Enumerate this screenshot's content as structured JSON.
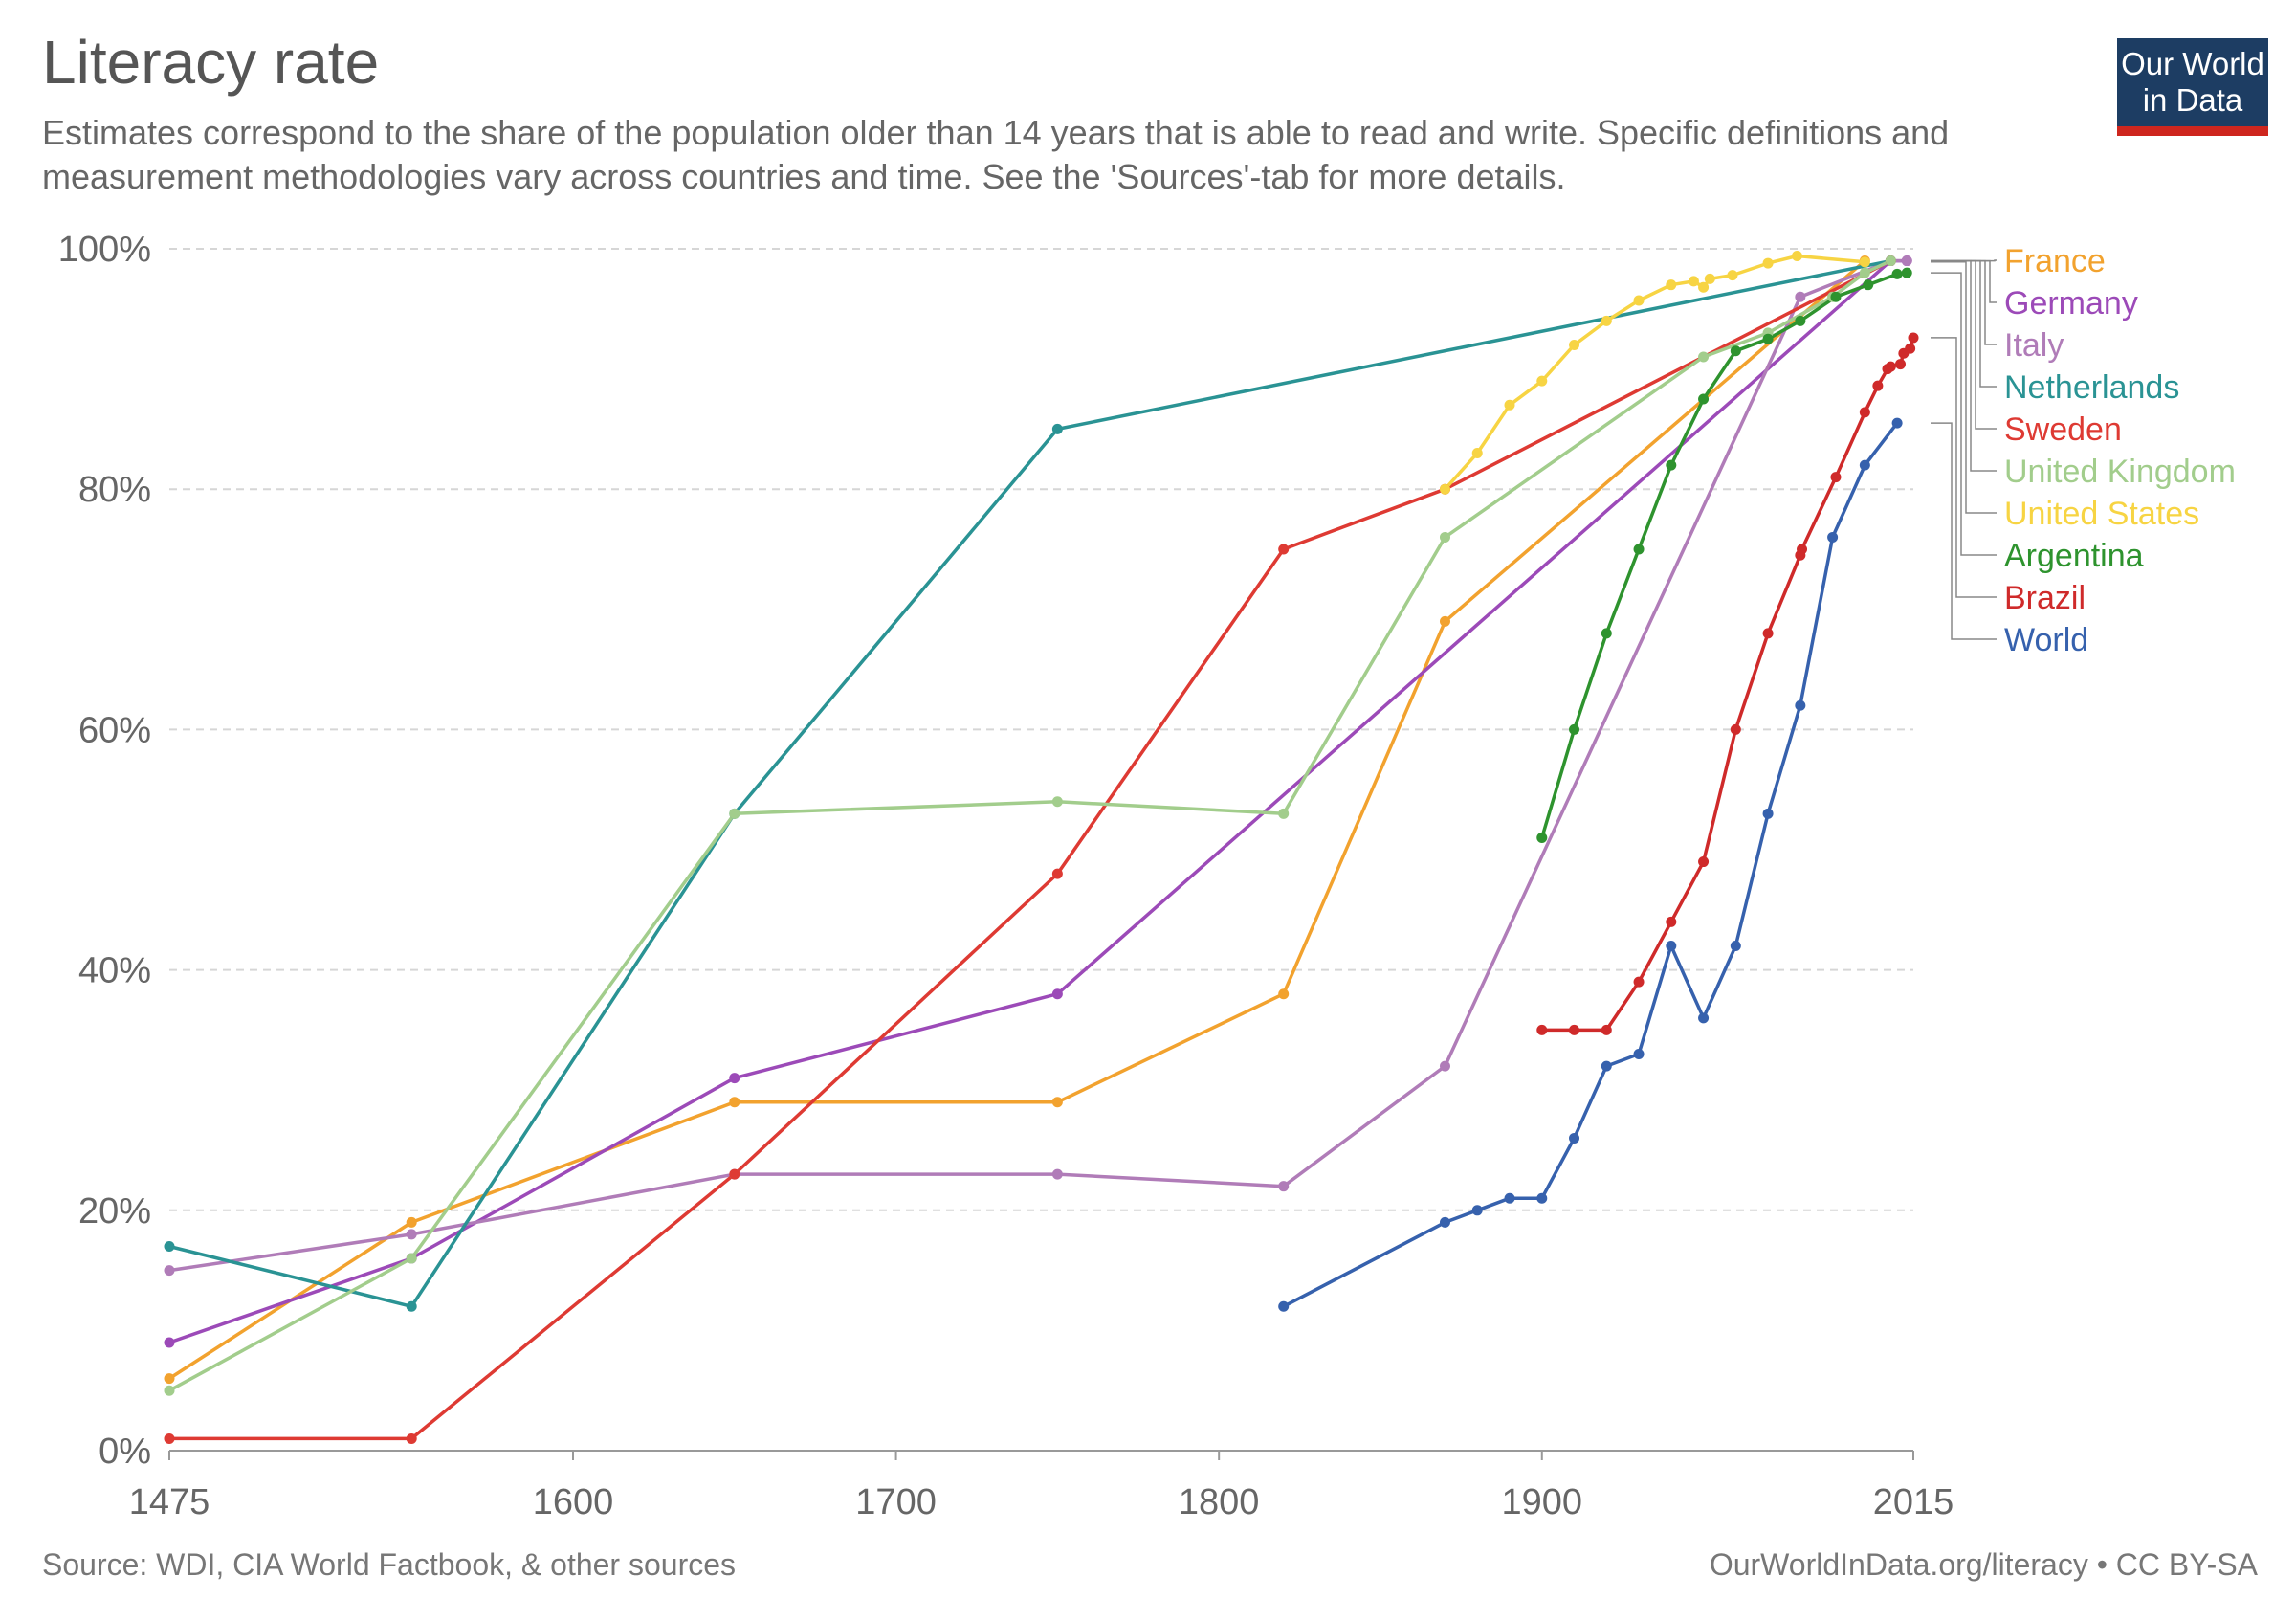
{
  "header": {
    "title": "Literacy rate",
    "subtitle": "Estimates correspond to the share of the population older than 14 years that is able to read and write. Specific definitions and measurement methodologies vary across countries and time. See the 'Sources'-tab for more details.",
    "logo_line1": "Our World",
    "logo_line2": "in Data"
  },
  "footer": {
    "source": "Source: WDI, CIA World Factbook, & other sources",
    "credit": "OurWorldInData.org/literacy • CC BY-SA"
  },
  "chart_data": {
    "type": "line",
    "title": "Literacy rate",
    "xlabel": "",
    "ylabel": "",
    "xlim": [
      1475,
      2015
    ],
    "ylim": [
      0,
      100
    ],
    "x_ticks": [
      {
        "value": 1475,
        "label": "1475"
      },
      {
        "value": 1600,
        "label": "1600"
      },
      {
        "value": 1700,
        "label": "1700"
      },
      {
        "value": 1800,
        "label": "1800"
      },
      {
        "value": 1900,
        "label": "1900"
      },
      {
        "value": 2015,
        "label": "2015"
      }
    ],
    "y_ticks": [
      {
        "value": 0,
        "label": "0%"
      },
      {
        "value": 20,
        "label": "20%"
      },
      {
        "value": 40,
        "label": "40%"
      },
      {
        "value": 60,
        "label": "60%"
      },
      {
        "value": 80,
        "label": "80%"
      },
      {
        "value": 100,
        "label": "100%"
      }
    ],
    "grid": true,
    "legend_position": "right",
    "series": [
      {
        "name": "France",
        "color": "#f2a22e",
        "points": [
          [
            1475,
            6
          ],
          [
            1550,
            19
          ],
          [
            1650,
            29
          ],
          [
            1750,
            29
          ],
          [
            1820,
            38
          ],
          [
            1870,
            69
          ],
          [
            2000,
            99
          ]
        ]
      },
      {
        "name": "Germany",
        "color": "#9c4ab8",
        "points": [
          [
            1475,
            9
          ],
          [
            1550,
            16
          ],
          [
            1650,
            31
          ],
          [
            1750,
            38
          ],
          [
            2008,
            99
          ],
          [
            2013,
            99
          ]
        ]
      },
      {
        "name": "Italy",
        "color": "#b07cb8",
        "points": [
          [
            1475,
            15
          ],
          [
            1550,
            18
          ],
          [
            1650,
            23
          ],
          [
            1750,
            23
          ],
          [
            1820,
            22
          ],
          [
            1870,
            32
          ],
          [
            1980,
            96
          ],
          [
            2008,
            99
          ],
          [
            2013,
            99
          ]
        ]
      },
      {
        "name": "Netherlands",
        "color": "#2a9394",
        "points": [
          [
            1475,
            17
          ],
          [
            1550,
            12
          ],
          [
            1650,
            53
          ],
          [
            1750,
            85
          ],
          [
            2008,
            99
          ]
        ]
      },
      {
        "name": "Sweden",
        "color": "#de3a33",
        "points": [
          [
            1475,
            1
          ],
          [
            1550,
            1
          ],
          [
            1650,
            23
          ],
          [
            1750,
            48
          ],
          [
            1820,
            75
          ],
          [
            1870,
            80
          ],
          [
            2008,
            99
          ]
        ]
      },
      {
        "name": "United Kingdom",
        "color": "#a2cd8c",
        "points": [
          [
            1475,
            5
          ],
          [
            1550,
            16
          ],
          [
            1650,
            53
          ],
          [
            1750,
            54
          ],
          [
            1820,
            53
          ],
          [
            1870,
            76
          ],
          [
            1950,
            91
          ],
          [
            1970,
            93
          ],
          [
            1990,
            96
          ],
          [
            2000,
            98
          ],
          [
            2008,
            99
          ]
        ]
      },
      {
        "name": "United States",
        "color": "#f7d443",
        "points": [
          [
            1870,
            80
          ],
          [
            1880,
            83
          ],
          [
            1890,
            87
          ],
          [
            1900,
            89
          ],
          [
            1910,
            92
          ],
          [
            1920,
            94
          ],
          [
            1930,
            95.7
          ],
          [
            1940,
            97
          ],
          [
            1947,
            97.3
          ],
          [
            1950,
            96.8
          ],
          [
            1952,
            97.5
          ],
          [
            1959,
            97.8
          ],
          [
            1970,
            98.8
          ],
          [
            1979,
            99.4
          ],
          [
            2000,
            98.9
          ]
        ]
      },
      {
        "name": "Argentina",
        "color": "#2e932e",
        "points": [
          [
            1900,
            51
          ],
          [
            1910,
            60
          ],
          [
            1920,
            68
          ],
          [
            1930,
            75
          ],
          [
            1940,
            82
          ],
          [
            1950,
            87.5
          ],
          [
            1960,
            91.5
          ],
          [
            1970,
            92.5
          ],
          [
            1980,
            94
          ],
          [
            1991,
            96
          ],
          [
            2001,
            97
          ],
          [
            2010,
            97.9
          ],
          [
            2013,
            98
          ]
        ]
      },
      {
        "name": "Brazil",
        "color": "#cf2a2a",
        "points": [
          [
            1900,
            35
          ],
          [
            1910,
            35
          ],
          [
            1920,
            35
          ],
          [
            1930,
            39
          ],
          [
            1940,
            44
          ],
          [
            1950,
            49
          ],
          [
            1960,
            60
          ],
          [
            1970,
            68
          ],
          [
            1980,
            74.5
          ],
          [
            1980.5,
            75
          ],
          [
            1991,
            81
          ],
          [
            2000,
            86.4
          ],
          [
            2004,
            88.6
          ],
          [
            2007,
            90
          ],
          [
            2008,
            90.2
          ],
          [
            2011,
            90.4
          ],
          [
            2012,
            91.3
          ],
          [
            2014,
            91.7
          ],
          [
            2015,
            92.6
          ]
        ]
      },
      {
        "name": "World",
        "color": "#3661ad",
        "points": [
          [
            1820,
            12
          ],
          [
            1870,
            19
          ],
          [
            1880,
            20
          ],
          [
            1890,
            21
          ],
          [
            1900,
            21
          ],
          [
            1910,
            26
          ],
          [
            1920,
            32
          ],
          [
            1930,
            33
          ],
          [
            1940,
            42
          ],
          [
            1950,
            36
          ],
          [
            1960,
            42
          ],
          [
            1970,
            53
          ],
          [
            1980,
            62
          ],
          [
            1990,
            76
          ],
          [
            2000,
            82
          ],
          [
            2010,
            85.5
          ]
        ]
      }
    ]
  }
}
